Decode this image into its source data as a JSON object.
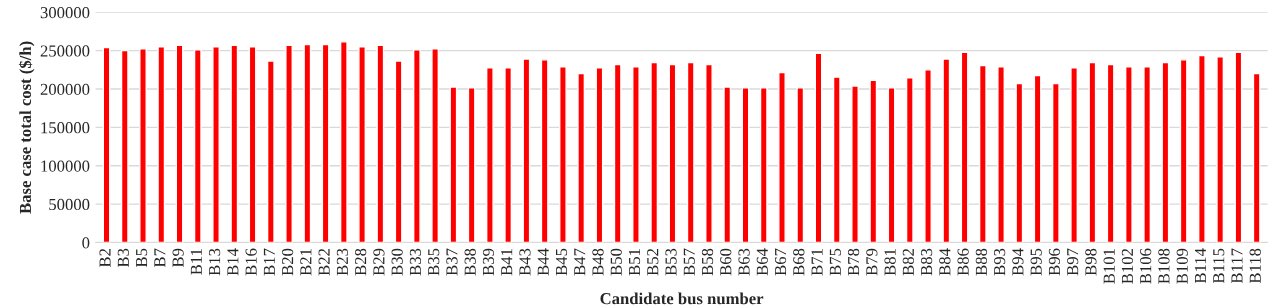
{
  "chart_data": {
    "type": "bar",
    "xlabel": "Candidate bus number",
    "ylabel": "Base case total cost ($/h)",
    "categories": [
      "B2",
      "B3",
      "B5",
      "B7",
      "B9",
      "B11",
      "B13",
      "B14",
      "B16",
      "B17",
      "B20",
      "B21",
      "B22",
      "B23",
      "B28",
      "B29",
      "B30",
      "B33",
      "B35",
      "B37",
      "B38",
      "B39",
      "B41",
      "B43",
      "B44",
      "B45",
      "B47",
      "B48",
      "B50",
      "B51",
      "B52",
      "B53",
      "B57",
      "B58",
      "B60",
      "B63",
      "B64",
      "B67",
      "B68",
      "B71",
      "B75",
      "B78",
      "B79",
      "B81",
      "B82",
      "B83",
      "B84",
      "B86",
      "B88",
      "B93",
      "B94",
      "B95",
      "B96",
      "B97",
      "B98",
      "B101",
      "B102",
      "B106",
      "B108",
      "B109",
      "B114",
      "B115",
      "B117",
      "B118"
    ],
    "values": [
      254000,
      250000,
      252500,
      255000,
      257000,
      251000,
      255000,
      257000,
      255000,
      236500,
      257000,
      258000,
      258000,
      261500,
      255000,
      257000,
      236500,
      251000,
      252500,
      202500,
      201500,
      227500,
      227500,
      239000,
      238000,
      229000,
      220000,
      227500,
      232000,
      229000,
      234500,
      232000,
      234500,
      232000,
      202500,
      201500,
      201500,
      221500,
      201500,
      246500,
      215500,
      204000,
      211500,
      201500,
      214500,
      225000,
      239000,
      248000,
      230500,
      229000,
      207000,
      217500,
      207000,
      227500,
      234500,
      232000,
      229000,
      229000,
      234500,
      238000,
      243500,
      242000,
      248000,
      220000
    ],
    "color": "#ff0000",
    "ylim": [
      0,
      300000
    ],
    "yticks": [
      0,
      50000,
      100000,
      150000,
      200000,
      250000,
      300000
    ],
    "grid": "y"
  }
}
